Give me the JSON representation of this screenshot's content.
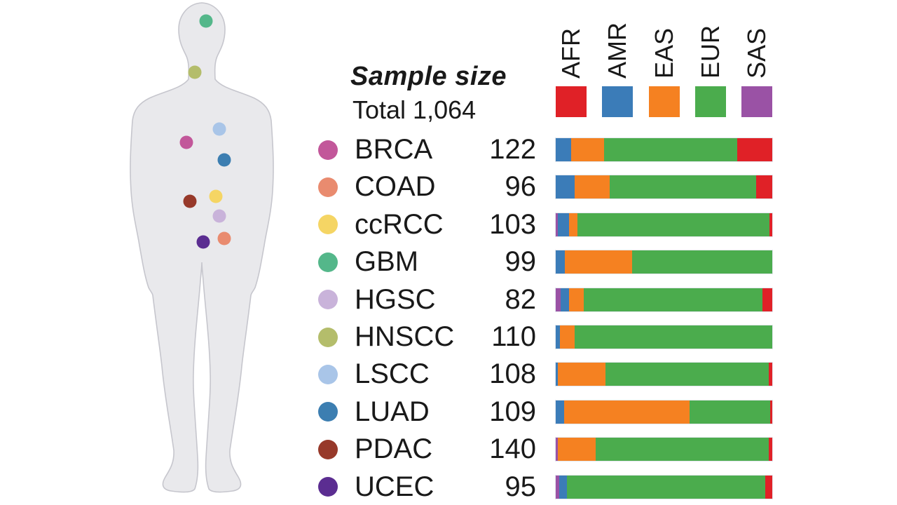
{
  "panel": {
    "title": "Sample size",
    "total_label": "Total 1,064",
    "total_value": 1064
  },
  "legend": [
    {
      "code": "AFR",
      "color": "#e02127"
    },
    {
      "code": "AMR",
      "color": "#3b7cb8"
    },
    {
      "code": "EAS",
      "color": "#f58121"
    },
    {
      "code": "EUR",
      "color": "#4bac4d"
    },
    {
      "code": "SAS",
      "color": "#9a52a5"
    }
  ],
  "chart_data": {
    "type": "bar",
    "subtype": "horizontal-stacked-percent",
    "title": "Sample size",
    "xlabel": "",
    "ylabel": "",
    "xlim": [
      0,
      100
    ],
    "grid": false,
    "legend_position": "top",
    "populations": [
      "AFR",
      "AMR",
      "EAS",
      "EUR",
      "SAS"
    ],
    "rows": [
      {
        "cancer": "BRCA",
        "n": 122,
        "dot_color": "#c2579a",
        "segments": [
          {
            "pop": "AMR",
            "pct": 7.0
          },
          {
            "pop": "EAS",
            "pct": 15.3
          },
          {
            "pop": "EUR",
            "pct": 61.5
          },
          {
            "pop": "AFR",
            "pct": 16.2
          }
        ]
      },
      {
        "cancer": "COAD",
        "n": 96,
        "dot_color": "#e98b6f",
        "segments": [
          {
            "pop": "AMR",
            "pct": 8.6
          },
          {
            "pop": "EAS",
            "pct": 16.2
          },
          {
            "pop": "EUR",
            "pct": 67.7
          },
          {
            "pop": "AFR",
            "pct": 7.5
          }
        ]
      },
      {
        "cancer": "ccRCC",
        "n": 103,
        "dot_color": "#f5d564",
        "segments": [
          {
            "pop": "SAS",
            "pct": 0.9
          },
          {
            "pop": "AMR",
            "pct": 5.4
          },
          {
            "pop": "EAS",
            "pct": 3.7
          },
          {
            "pop": "EUR",
            "pct": 88.6
          },
          {
            "pop": "AFR",
            "pct": 1.4
          }
        ]
      },
      {
        "cancer": "GBM",
        "n": 99,
        "dot_color": "#54b78a",
        "segments": [
          {
            "pop": "AMR",
            "pct": 4.1
          },
          {
            "pop": "EAS",
            "pct": 31.3
          },
          {
            "pop": "EUR",
            "pct": 64.6
          }
        ]
      },
      {
        "cancer": "HGSC",
        "n": 82,
        "dot_color": "#c9b3da",
        "segments": [
          {
            "pop": "SAS",
            "pct": 2.4
          },
          {
            "pop": "AMR",
            "pct": 3.6
          },
          {
            "pop": "EAS",
            "pct": 6.8
          },
          {
            "pop": "EUR",
            "pct": 82.6
          },
          {
            "pop": "AFR",
            "pct": 4.6
          }
        ]
      },
      {
        "cancer": "HNSCC",
        "n": 110,
        "dot_color": "#b4bd6b",
        "segments": [
          {
            "pop": "AMR",
            "pct": 1.9
          },
          {
            "pop": "EAS",
            "pct": 6.7
          },
          {
            "pop": "EUR",
            "pct": 91.4
          }
        ]
      },
      {
        "cancer": "LSCC",
        "n": 108,
        "dot_color": "#a9c5e8",
        "segments": [
          {
            "pop": "AMR",
            "pct": 1.1
          },
          {
            "pop": "EAS",
            "pct": 21.9
          },
          {
            "pop": "EUR",
            "pct": 75.3
          },
          {
            "pop": "AFR",
            "pct": 1.7
          }
        ]
      },
      {
        "cancer": "LUAD",
        "n": 109,
        "dot_color": "#3c7eb1",
        "segments": [
          {
            "pop": "AMR",
            "pct": 3.8
          },
          {
            "pop": "EAS",
            "pct": 58.0
          },
          {
            "pop": "EUR",
            "pct": 37.2
          },
          {
            "pop": "AFR",
            "pct": 1.0
          }
        ]
      },
      {
        "cancer": "PDAC",
        "n": 140,
        "dot_color": "#97392a",
        "segments": [
          {
            "pop": "SAS",
            "pct": 0.9
          },
          {
            "pop": "EAS",
            "pct": 17.5
          },
          {
            "pop": "EUR",
            "pct": 80.1
          },
          {
            "pop": "AFR",
            "pct": 1.5
          }
        ]
      },
      {
        "cancer": "UCEC",
        "n": 95,
        "dot_color": "#5b2d91",
        "segments": [
          {
            "pop": "SAS",
            "pct": 1.6
          },
          {
            "pop": "AMR",
            "pct": 3.5
          },
          {
            "pop": "EUR",
            "pct": 91.8
          },
          {
            "pop": "AFR",
            "pct": 3.1
          }
        ]
      }
    ]
  },
  "body_map": {
    "markers": [
      {
        "cancer": "GBM",
        "x": 294,
        "y": 30
      },
      {
        "cancer": "HNSCC",
        "x": 278,
        "y": 103
      },
      {
        "cancer": "LSCC",
        "x": 313,
        "y": 184
      },
      {
        "cancer": "BRCA",
        "x": 266,
        "y": 203
      },
      {
        "cancer": "LUAD",
        "x": 320,
        "y": 228
      },
      {
        "cancer": "ccRCC",
        "x": 308,
        "y": 280
      },
      {
        "cancer": "PDAC",
        "x": 271,
        "y": 287
      },
      {
        "cancer": "HGSC",
        "x": 313,
        "y": 308
      },
      {
        "cancer": "COAD",
        "x": 320,
        "y": 340
      },
      {
        "cancer": "UCEC",
        "x": 290,
        "y": 345
      }
    ]
  }
}
